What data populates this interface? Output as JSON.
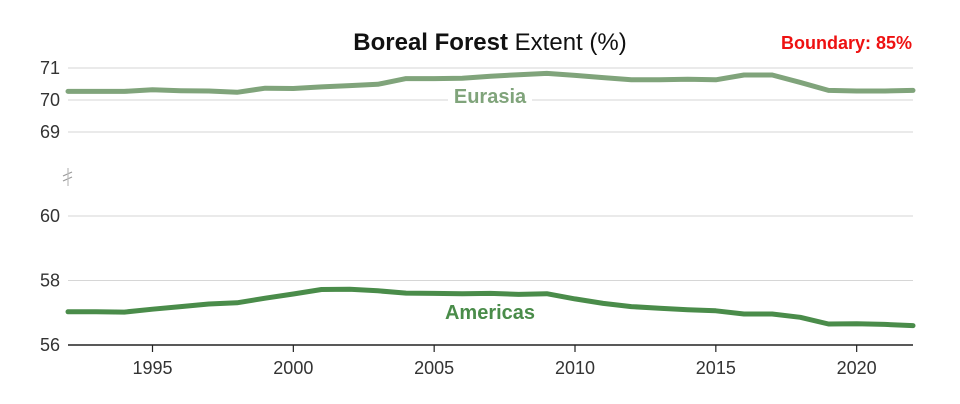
{
  "chart_data": {
    "type": "line",
    "title_bold": "Boreal Forest",
    "title_rest": " Extent (%)",
    "annotation": "Boundary: 85%",
    "annotation_color": "#ee1111",
    "xlabel": "",
    "ylabel": "",
    "xlim": [
      1992,
      2022
    ],
    "x_ticks": [
      "1995",
      "2000",
      "2005",
      "2010",
      "2015",
      "2020"
    ],
    "y_axis_broken": true,
    "ylim_upper": [
      69,
      71
    ],
    "ylim_lower": [
      56,
      60
    ],
    "y_ticks_upper": [
      "71",
      "70",
      "69"
    ],
    "y_ticks_lower": [
      "60",
      "58",
      "56"
    ],
    "grid": true,
    "x": [
      1992,
      1993,
      1994,
      1995,
      1996,
      1997,
      1998,
      1999,
      2000,
      2001,
      2002,
      2003,
      2004,
      2005,
      2006,
      2007,
      2008,
      2009,
      2010,
      2011,
      2012,
      2013,
      2014,
      2015,
      2016,
      2017,
      2018,
      2019,
      2020,
      2021,
      2022
    ],
    "series": [
      {
        "name": "Eurasia",
        "color": "#80a47b",
        "values": [
          70.27,
          70.27,
          70.27,
          70.32,
          70.29,
          70.28,
          70.24,
          70.37,
          70.36,
          70.41,
          70.45,
          70.49,
          70.67,
          70.67,
          70.68,
          70.74,
          70.79,
          70.83,
          70.77,
          70.7,
          70.63,
          70.63,
          70.65,
          70.63,
          70.78,
          70.78,
          70.55,
          70.3,
          70.28,
          70.28,
          70.3
        ]
      },
      {
        "name": "Americas",
        "color": "#4a8c4a",
        "values": [
          57.03,
          57.03,
          57.02,
          57.11,
          57.19,
          57.27,
          57.31,
          57.45,
          57.58,
          57.72,
          57.73,
          57.68,
          57.61,
          57.6,
          57.59,
          57.6,
          57.57,
          57.59,
          57.43,
          57.29,
          57.19,
          57.14,
          57.09,
          57.06,
          56.96,
          56.96,
          56.86,
          56.65,
          56.66,
          56.64,
          56.6
        ]
      }
    ]
  }
}
